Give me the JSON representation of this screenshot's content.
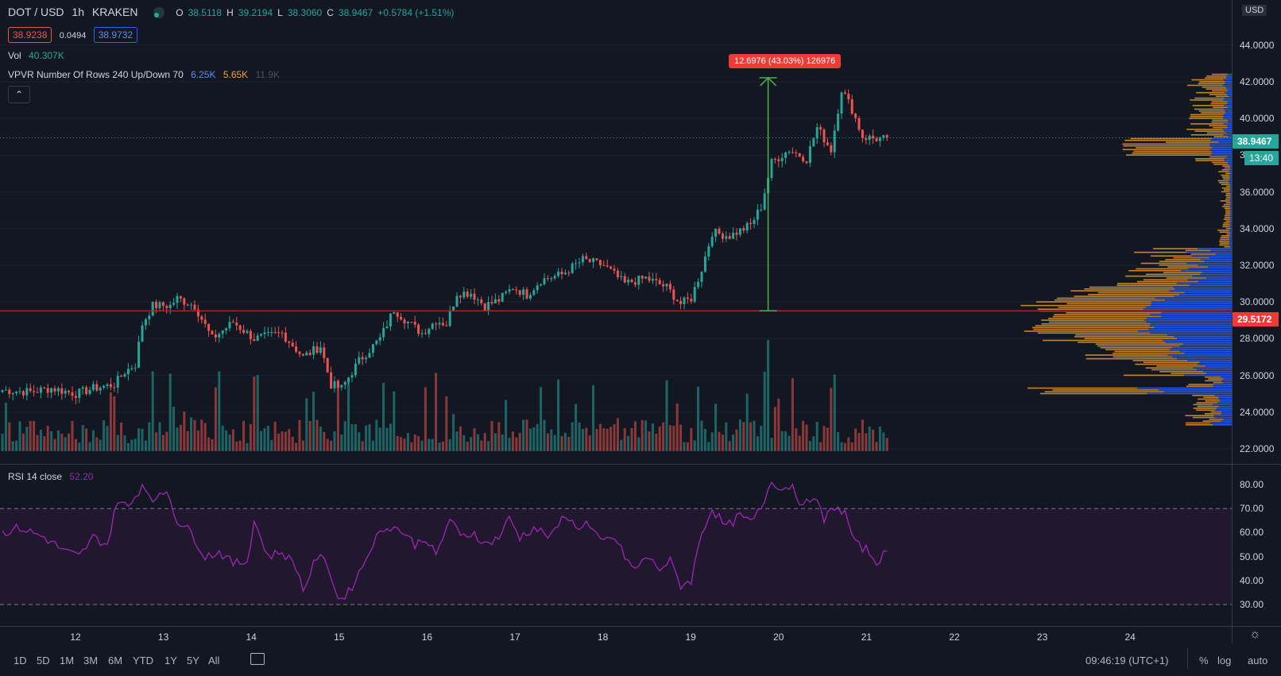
{
  "header": {
    "symbol": "DOT / USD",
    "interval": "1h",
    "exchange": "KRAKEN",
    "ohlc": [
      {
        "k": "O",
        "v": "38.5118"
      },
      {
        "k": "H",
        "v": "39.2194"
      },
      {
        "k": "L",
        "v": "38.3060"
      },
      {
        "k": "C",
        "v": "38.9467"
      },
      {
        "k": "",
        "v": "+0.5784 (+1.51%)"
      }
    ],
    "bid": "38.9238",
    "spread": "0.0494",
    "ask": "38.9732"
  },
  "indicators": {
    "vol_label": "Vol",
    "vol_value": "40.307K",
    "vpvr_label": "VPVR Number Of Rows 240 Up/Down 70",
    "vpvr_up": "6.25K",
    "vpvr_down": "5.65K",
    "vpvr_total": "11.9K",
    "rsi_label": "RSI 14 close",
    "rsi_value": "52.20",
    "collapse_icon": "chevron-up-icon"
  },
  "measure_label": "12.6976 (43.03%) 126976",
  "currency_badge": "USD",
  "price_tags": {
    "last": "38.9467",
    "countdown": "13:40",
    "line": "29.5172"
  },
  "price_axis": [
    "44.0000",
    "42.0000",
    "40.0000",
    "38.0000",
    "36.0000",
    "34.0000",
    "32.0000",
    "30.0000",
    "28.0000",
    "26.0000",
    "24.0000",
    "22.0000"
  ],
  "rsi_axis": [
    "80.00",
    "70.00",
    "60.00",
    "50.00",
    "40.00",
    "30.00"
  ],
  "time_axis": [
    "12",
    "13",
    "14",
    "15",
    "16",
    "17",
    "18",
    "19",
    "20",
    "21",
    "22",
    "23",
    "24"
  ],
  "timeframes": [
    "1D",
    "5D",
    "1M",
    "3M",
    "6M",
    "YTD",
    "1Y",
    "5Y",
    "All"
  ],
  "clock": "09:46:19 (UTC+1)",
  "bottom_right": [
    "%",
    "log",
    "auto"
  ],
  "colors": {
    "up": "#26a69a",
    "down": "#ef5350",
    "background": "#131722",
    "hline": "#ff0000",
    "rsi": "#9c27b0",
    "measure": "#4caf50",
    "vp_up": "#2962ff",
    "vp_down": "#f0a030"
  },
  "chart_data": {
    "type": "candlestick",
    "symbol": "DOT / USD",
    "interval": "1h",
    "price_range": [
      22,
      45
    ],
    "horizontal_line": 29.5172,
    "measure": {
      "from": 29.52,
      "to": 42.22,
      "label": "12.6976 (43.03%) 126976"
    },
    "anchors": [
      {
        "t": 0,
        "p": 25.2
      },
      {
        "t": 8,
        "p": 25.1
      },
      {
        "t": 14,
        "p": 25.3
      },
      {
        "t": 21,
        "p": 25.0
      },
      {
        "t": 26,
        "p": 25.3
      },
      {
        "t": 32,
        "p": 25.5
      },
      {
        "t": 35,
        "p": 26.2
      },
      {
        "t": 38,
        "p": 26.6
      },
      {
        "t": 40,
        "p": 28.8
      },
      {
        "t": 43,
        "p": 29.8
      },
      {
        "t": 48,
        "p": 29.8
      },
      {
        "t": 50,
        "p": 30.2
      },
      {
        "t": 55,
        "p": 29.8
      },
      {
        "t": 60,
        "p": 28.0
      },
      {
        "t": 66,
        "p": 28.9
      },
      {
        "t": 72,
        "p": 28.0
      },
      {
        "t": 80,
        "p": 28.3
      },
      {
        "t": 86,
        "p": 27.0
      },
      {
        "t": 91,
        "p": 27.6
      },
      {
        "t": 94,
        "p": 25.5
      },
      {
        "t": 97,
        "p": 25.3
      },
      {
        "t": 102,
        "p": 26.8
      },
      {
        "t": 108,
        "p": 28.0
      },
      {
        "t": 112,
        "p": 29.6
      },
      {
        "t": 116,
        "p": 28.9
      },
      {
        "t": 120,
        "p": 28.3
      },
      {
        "t": 124,
        "p": 29.0
      },
      {
        "t": 127,
        "p": 28.8
      },
      {
        "t": 130,
        "p": 30.5
      },
      {
        "t": 134,
        "p": 30.5
      },
      {
        "t": 138,
        "p": 29.8
      },
      {
        "t": 142,
        "p": 30.1
      },
      {
        "t": 146,
        "p": 30.8
      },
      {
        "t": 150,
        "p": 30.4
      },
      {
        "t": 154,
        "p": 31.2
      },
      {
        "t": 160,
        "p": 31.5
      },
      {
        "t": 166,
        "p": 32.3
      },
      {
        "t": 172,
        "p": 32.0
      },
      {
        "t": 178,
        "p": 31.0
      },
      {
        "t": 184,
        "p": 31.3
      },
      {
        "t": 190,
        "p": 30.8
      },
      {
        "t": 194,
        "p": 29.9
      },
      {
        "t": 197,
        "p": 30.2
      },
      {
        "t": 200,
        "p": 31.8
      },
      {
        "t": 203,
        "p": 33.8
      },
      {
        "t": 208,
        "p": 33.6
      },
      {
        "t": 214,
        "p": 34.2
      },
      {
        "t": 217,
        "p": 35.2
      },
      {
        "t": 220,
        "p": 37.6
      },
      {
        "t": 225,
        "p": 38.3
      },
      {
        "t": 230,
        "p": 37.8
      },
      {
        "t": 233,
        "p": 39.5
      },
      {
        "t": 237,
        "p": 38.3
      },
      {
        "t": 240,
        "p": 41.6
      },
      {
        "t": 243,
        "p": 40.5
      },
      {
        "t": 246,
        "p": 39.0
      },
      {
        "t": 250,
        "p": 38.9
      },
      {
        "t": 253,
        "p": 38.9
      }
    ],
    "rsi": {
      "period": 14,
      "last": 52.2,
      "overbought": 70,
      "oversold": 30,
      "range": [
        26,
        84
      ],
      "anchors": [
        {
          "t": 0,
          "v": 60
        },
        {
          "t": 5,
          "v": 62
        },
        {
          "t": 12,
          "v": 58
        },
        {
          "t": 18,
          "v": 52
        },
        {
          "t": 22,
          "v": 50
        },
        {
          "t": 26,
          "v": 58
        },
        {
          "t": 30,
          "v": 55
        },
        {
          "t": 33,
          "v": 74
        },
        {
          "t": 36,
          "v": 70
        },
        {
          "t": 40,
          "v": 80
        },
        {
          "t": 44,
          "v": 73
        },
        {
          "t": 47,
          "v": 78
        },
        {
          "t": 50,
          "v": 65
        },
        {
          "t": 54,
          "v": 60
        },
        {
          "t": 58,
          "v": 50
        },
        {
          "t": 62,
          "v": 52
        },
        {
          "t": 66,
          "v": 47
        },
        {
          "t": 70,
          "v": 48
        },
        {
          "t": 72,
          "v": 65
        },
        {
          "t": 76,
          "v": 50
        },
        {
          "t": 80,
          "v": 52
        },
        {
          "t": 84,
          "v": 46
        },
        {
          "t": 86,
          "v": 36
        },
        {
          "t": 90,
          "v": 50
        },
        {
          "t": 93,
          "v": 47
        },
        {
          "t": 96,
          "v": 32
        },
        {
          "t": 99,
          "v": 35
        },
        {
          "t": 103,
          "v": 46
        },
        {
          "t": 106,
          "v": 56
        },
        {
          "t": 110,
          "v": 63
        },
        {
          "t": 114,
          "v": 61
        },
        {
          "t": 118,
          "v": 55
        },
        {
          "t": 121,
          "v": 58
        },
        {
          "t": 124,
          "v": 50
        },
        {
          "t": 128,
          "v": 66
        },
        {
          "t": 131,
          "v": 58
        },
        {
          "t": 135,
          "v": 60
        },
        {
          "t": 138,
          "v": 55
        },
        {
          "t": 142,
          "v": 58
        },
        {
          "t": 145,
          "v": 66
        },
        {
          "t": 148,
          "v": 58
        },
        {
          "t": 152,
          "v": 62
        },
        {
          "t": 157,
          "v": 58
        },
        {
          "t": 161,
          "v": 68
        },
        {
          "t": 164,
          "v": 62
        },
        {
          "t": 167,
          "v": 64
        },
        {
          "t": 171,
          "v": 56
        },
        {
          "t": 175,
          "v": 58
        },
        {
          "t": 178,
          "v": 50
        },
        {
          "t": 181,
          "v": 44
        },
        {
          "t": 184,
          "v": 50
        },
        {
          "t": 188,
          "v": 45
        },
        {
          "t": 191,
          "v": 48
        },
        {
          "t": 194,
          "v": 38
        },
        {
          "t": 197,
          "v": 40
        },
        {
          "t": 200,
          "v": 60
        },
        {
          "t": 203,
          "v": 70
        },
        {
          "t": 207,
          "v": 62
        },
        {
          "t": 211,
          "v": 67
        },
        {
          "t": 214,
          "v": 64
        },
        {
          "t": 217,
          "v": 70
        },
        {
          "t": 220,
          "v": 82
        },
        {
          "t": 223,
          "v": 78
        },
        {
          "t": 226,
          "v": 80
        },
        {
          "t": 229,
          "v": 70
        },
        {
          "t": 232,
          "v": 76
        },
        {
          "t": 235,
          "v": 65
        },
        {
          "t": 238,
          "v": 71
        },
        {
          "t": 241,
          "v": 68
        },
        {
          "t": 244,
          "v": 55
        },
        {
          "t": 247,
          "v": 53
        },
        {
          "t": 250,
          "v": 48
        },
        {
          "t": 253,
          "v": 52
        }
      ]
    }
  }
}
